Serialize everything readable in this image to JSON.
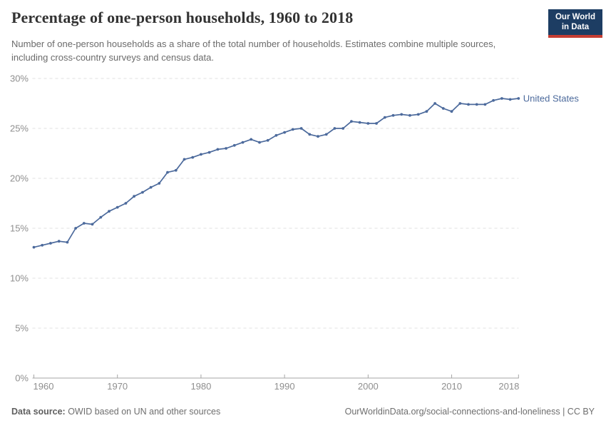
{
  "header": {
    "title": "Percentage of one-person households, 1960 to 2018",
    "subtitle": "Number of one-person households as a share of the total number of households. Estimates combine multiple sources, including cross-country surveys and census data."
  },
  "logo": {
    "line1": "Our World",
    "line2": "in Data",
    "bg_color": "#1D3D63",
    "accent_color": "#C53D33"
  },
  "chart_data": {
    "type": "line",
    "title": "Percentage of one-person households, 1960 to 2018",
    "xlabel": "",
    "ylabel": "",
    "unit": "%",
    "xlim": [
      1960,
      2018
    ],
    "ylim": [
      0,
      30
    ],
    "grid": "horizontal-dashed",
    "legend_position": "right-of-line-end",
    "line_color": "#4C6A9C",
    "label_color": "#4C6A9C",
    "axis_text_color": "#8f8f8f",
    "gridline_color": "#e0e0e0",
    "axis_line_color": "#a6a6a6",
    "xticks": [
      1960,
      1970,
      1980,
      1990,
      2000,
      2010,
      2018
    ],
    "yticks": [
      0,
      5,
      10,
      15,
      20,
      25,
      30
    ],
    "ytick_labels": [
      "0%",
      "5%",
      "10%",
      "15%",
      "20%",
      "25%",
      "30%"
    ],
    "years": [
      1960,
      1961,
      1962,
      1963,
      1964,
      1965,
      1966,
      1967,
      1968,
      1969,
      1970,
      1971,
      1972,
      1973,
      1974,
      1975,
      1976,
      1977,
      1978,
      1979,
      1980,
      1981,
      1982,
      1983,
      1984,
      1985,
      1986,
      1987,
      1988,
      1989,
      1990,
      1991,
      1992,
      1993,
      1994,
      1995,
      1996,
      1997,
      1998,
      1999,
      2000,
      2001,
      2002,
      2003,
      2004,
      2005,
      2006,
      2007,
      2008,
      2009,
      2010,
      2011,
      2012,
      2013,
      2014,
      2015,
      2016,
      2017,
      2018
    ],
    "series": [
      {
        "name": "United States",
        "values": [
          13.1,
          13.3,
          13.5,
          13.7,
          13.6,
          15.0,
          15.5,
          15.4,
          16.1,
          16.7,
          17.1,
          17.5,
          18.2,
          18.6,
          19.1,
          19.5,
          20.6,
          20.8,
          21.9,
          22.1,
          22.4,
          22.6,
          22.9,
          23.0,
          23.3,
          23.6,
          23.9,
          23.6,
          23.8,
          24.3,
          24.6,
          24.9,
          25.0,
          24.4,
          24.2,
          24.4,
          25.0,
          25.0,
          25.7,
          25.6,
          25.5,
          25.5,
          26.1,
          26.3,
          26.4,
          26.3,
          26.4,
          26.7,
          27.5,
          27.0,
          26.7,
          27.5,
          27.4,
          27.4,
          27.4,
          27.8,
          28.0,
          27.9,
          28.0
        ]
      }
    ]
  },
  "footer": {
    "source_label": "Data source:",
    "source_text": " OWID based on UN and other sources",
    "credit": "OurWorldinData.org/social-connections-and-loneliness | CC BY"
  }
}
